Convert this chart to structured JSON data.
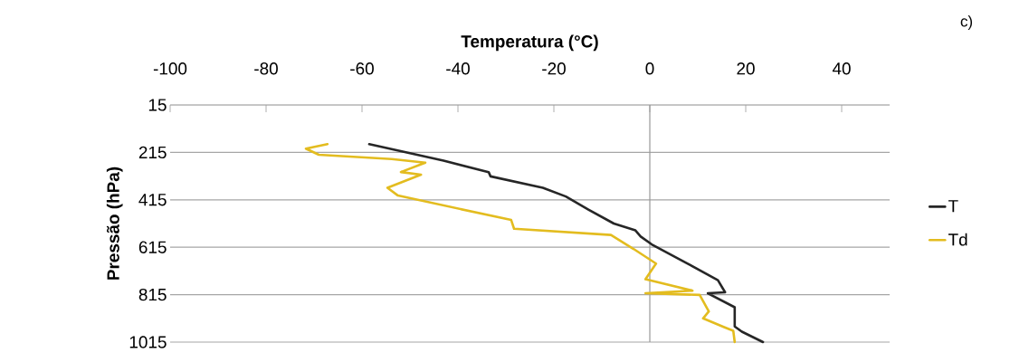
{
  "chart_data": {
    "type": "line",
    "xlabel": "Temperatura (°C)",
    "ylabel": "Pressão (hPa)",
    "annotations": [
      "c)"
    ],
    "xlim": [
      -100,
      50
    ],
    "xticks": [
      -100,
      -80,
      -60,
      -40,
      -20,
      0,
      20,
      40
    ],
    "ylim": [
      1015,
      15
    ],
    "yticks": [
      15,
      215,
      415,
      615,
      815,
      1015
    ],
    "grid": "y",
    "legend": "right",
    "marker": "none",
    "line_style": "solid",
    "series": [
      {
        "name": "T",
        "color": "#262626",
        "x": [
          -58.5,
          -43,
          -33.6,
          -33.2,
          -22.3,
          -17.5,
          -12.8,
          -7.5,
          -3,
          -1.9,
          0.4,
          7.9,
          14.2,
          15.7,
          12.1,
          17.7,
          17.7,
          19.2,
          23.6
        ],
        "values": [
          180,
          250,
          298,
          316,
          364,
          401,
          456,
          515,
          544,
          570,
          603,
          684,
          754,
          805,
          809,
          868,
          949,
          971,
          1015
        ]
      },
      {
        "name": "Td",
        "color": "#e3bc1f",
        "x": [
          -67.2,
          -71.7,
          -69,
          -53.8,
          -46.8,
          -51.9,
          -47.7,
          -54.7,
          -52.5,
          -28.9,
          -28.3,
          -8.1,
          -3.4,
          1.3,
          -0.9,
          8.9,
          -0.9,
          10.4,
          12.3,
          11.1,
          15.5,
          17.4,
          17.7
        ],
        "values": [
          180,
          199,
          225,
          243,
          258,
          298,
          309,
          364,
          397,
          500,
          537,
          563,
          622,
          684,
          750,
          798,
          809,
          816,
          886,
          915,
          952,
          967,
          1015
        ]
      }
    ]
  }
}
